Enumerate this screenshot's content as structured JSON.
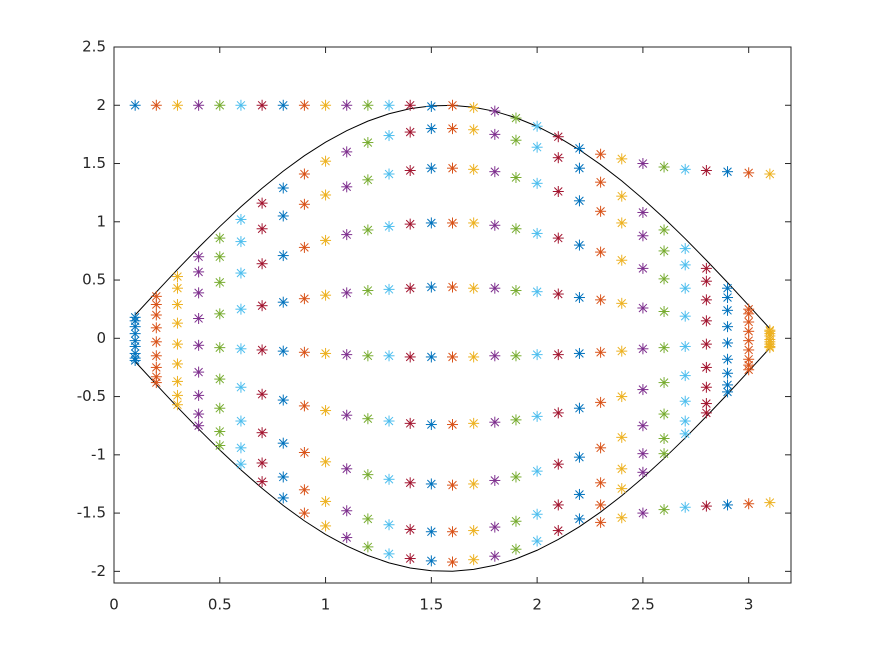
{
  "chart_data": {
    "type": "scatter",
    "marker": "asterisk",
    "box": true,
    "xlim": [
      0,
      3.2
    ],
    "ylim": [
      -2.1,
      2.5
    ],
    "xticks": [
      0,
      0.5,
      1,
      1.5,
      2,
      2.5,
      3
    ],
    "yticks": [
      -2,
      -1.5,
      -1,
      -0.5,
      0,
      0.5,
      1,
      1.5,
      2,
      2.5
    ],
    "series": [
      {
        "x": 0.1,
        "color": "#0072BD",
        "values": [
          2,
          0.18,
          0.15,
          0.1,
          0.04,
          -0.02,
          -0.07,
          -0.13,
          -0.17,
          -0.19
        ]
      },
      {
        "x": 0.2,
        "color": "#D95319",
        "values": [
          2,
          0.36,
          0.29,
          0.2,
          0.09,
          -0.03,
          -0.15,
          -0.25,
          -0.33,
          -0.38
        ]
      },
      {
        "x": 0.3,
        "color": "#EDB120",
        "values": [
          2,
          0.53,
          0.43,
          0.29,
          0.13,
          -0.05,
          -0.22,
          -0.37,
          -0.49,
          -0.57
        ]
      },
      {
        "x": 0.4,
        "color": "#7E2F8E",
        "values": [
          2,
          0.7,
          0.57,
          0.39,
          0.17,
          -0.06,
          -0.29,
          -0.49,
          -0.65,
          -0.75
        ]
      },
      {
        "x": 0.5,
        "color": "#77AC30",
        "values": [
          2,
          0.86,
          0.7,
          0.48,
          0.21,
          -0.08,
          -0.35,
          -0.6,
          -0.8,
          -0.92
        ]
      },
      {
        "x": 0.6,
        "color": "#4DBEEE",
        "values": [
          2,
          1.02,
          0.83,
          0.56,
          0.25,
          -0.09,
          -0.42,
          -0.71,
          -0.94,
          -1.08
        ]
      },
      {
        "x": 0.7,
        "color": "#A2142F",
        "values": [
          2,
          1.16,
          0.94,
          0.64,
          0.28,
          -0.1,
          -0.48,
          -0.81,
          -1.07,
          -1.23
        ]
      },
      {
        "x": 0.8,
        "color": "#0072BD",
        "values": [
          2,
          1.29,
          1.05,
          0.71,
          0.31,
          -0.11,
          -0.53,
          -0.9,
          -1.19,
          -1.37
        ]
      },
      {
        "x": 0.9,
        "color": "#D95319",
        "values": [
          2,
          1.41,
          1.15,
          0.78,
          0.34,
          -0.12,
          -0.58,
          -0.98,
          -1.3,
          -1.5
        ]
      },
      {
        "x": 1.0,
        "color": "#EDB120",
        "values": [
          2,
          1.52,
          1.23,
          0.84,
          0.37,
          -0.13,
          -0.62,
          -1.06,
          -1.4,
          -1.61
        ]
      },
      {
        "x": 1.1,
        "color": "#7E2F8E",
        "values": [
          2,
          1.6,
          1.3,
          0.89,
          0.39,
          -0.14,
          -0.66,
          -1.12,
          -1.48,
          -1.71
        ]
      },
      {
        "x": 1.2,
        "color": "#77AC30",
        "values": [
          2,
          1.68,
          1.36,
          0.93,
          0.41,
          -0.15,
          -0.69,
          -1.17,
          -1.55,
          -1.79
        ]
      },
      {
        "x": 1.3,
        "color": "#4DBEEE",
        "values": [
          2,
          1.74,
          1.41,
          0.96,
          0.42,
          -0.15,
          -0.71,
          -1.21,
          -1.6,
          -1.85
        ]
      },
      {
        "x": 1.4,
        "color": "#A2142F",
        "values": [
          2,
          1.77,
          1.44,
          0.98,
          0.43,
          -0.16,
          -0.73,
          -1.24,
          -1.64,
          -1.89
        ]
      },
      {
        "x": 1.5,
        "color": "#0072BD",
        "values": [
          1.99,
          1.8,
          1.46,
          0.99,
          0.44,
          -0.16,
          -0.74,
          -1.25,
          -1.66,
          -1.91
        ]
      },
      {
        "x": 1.6,
        "color": "#D95319",
        "values": [
          2.0,
          1.8,
          1.46,
          0.99,
          0.44,
          -0.16,
          -0.74,
          -1.26,
          -1.66,
          -1.92
        ]
      },
      {
        "x": 1.7,
        "color": "#EDB120",
        "values": [
          1.98,
          1.79,
          1.45,
          0.99,
          0.43,
          -0.16,
          -0.73,
          -1.25,
          -1.65,
          -1.9
        ]
      },
      {
        "x": 1.8,
        "color": "#7E2F8E",
        "values": [
          1.95,
          1.75,
          1.43,
          0.97,
          0.43,
          -0.15,
          -0.72,
          -1.22,
          -1.62,
          -1.87
        ]
      },
      {
        "x": 1.9,
        "color": "#77AC30",
        "values": [
          1.89,
          1.7,
          1.38,
          0.94,
          0.41,
          -0.15,
          -0.7,
          -1.19,
          -1.57,
          -1.81
        ]
      },
      {
        "x": 2.0,
        "color": "#4DBEEE",
        "values": [
          1.82,
          1.64,
          1.33,
          0.9,
          0.4,
          -0.14,
          -0.67,
          -1.14,
          -1.51,
          -1.74
        ]
      },
      {
        "x": 2.1,
        "color": "#A2142F",
        "values": [
          1.73,
          1.55,
          1.26,
          0.86,
          0.38,
          -0.14,
          -0.64,
          -1.08,
          -1.43,
          -1.65
        ]
      },
      {
        "x": 2.2,
        "color": "#0072BD",
        "values": [
          1.63,
          1.46,
          1.18,
          0.8,
          0.35,
          -0.13,
          -0.6,
          -1.02,
          -1.34,
          -1.55
        ]
      },
      {
        "x": 2.3,
        "color": "#D95319",
        "values": [
          1.58,
          1.34,
          1.09,
          0.74,
          0.33,
          -0.12,
          -0.55,
          -0.94,
          -1.24,
          -1.43,
          -1.58
        ]
      },
      {
        "x": 2.4,
        "color": "#EDB120",
        "values": [
          1.54,
          1.22,
          0.99,
          0.67,
          0.3,
          -0.11,
          -0.5,
          -0.85,
          -1.12,
          -1.29,
          -1.54
        ]
      },
      {
        "x": 2.5,
        "color": "#7E2F8E",
        "values": [
          1.5,
          1.08,
          0.88,
          0.6,
          0.26,
          -0.09,
          -0.44,
          -0.75,
          -0.99,
          -1.15,
          -1.5
        ]
      },
      {
        "x": 2.6,
        "color": "#77AC30",
        "values": [
          1.47,
          0.93,
          0.75,
          0.51,
          0.23,
          -0.08,
          -0.38,
          -0.65,
          -0.86,
          -0.99,
          -1.47
        ]
      },
      {
        "x": 2.7,
        "color": "#4DBEEE",
        "values": [
          1.45,
          0.77,
          0.63,
          0.43,
          0.19,
          -0.07,
          -0.32,
          -0.54,
          -0.71,
          -0.82,
          -1.45
        ]
      },
      {
        "x": 2.8,
        "color": "#A2142F",
        "values": [
          1.44,
          0.6,
          0.49,
          0.33,
          0.15,
          -0.05,
          -0.25,
          -0.42,
          -0.56,
          -0.64,
          -1.44
        ]
      },
      {
        "x": 2.9,
        "color": "#0072BD",
        "values": [
          1.43,
          0.43,
          0.35,
          0.24,
          0.1,
          -0.04,
          -0.18,
          -0.3,
          -0.4,
          -0.46,
          -1.43
        ]
      },
      {
        "x": 3.0,
        "color": "#D95319",
        "values": [
          1.42,
          0.25,
          0.21,
          0.14,
          0.06,
          -0.02,
          -0.1,
          -0.18,
          -0.23,
          -0.27,
          -1.42
        ]
      },
      {
        "x": 3.1,
        "color": "#EDB120",
        "values": [
          1.41,
          0.07,
          0.06,
          0.04,
          0.02,
          -0.01,
          -0.03,
          -0.05,
          -0.07,
          -0.08,
          -1.41
        ]
      }
    ],
    "lines": [
      {
        "color": "#000000",
        "x": [
          0.1,
          0.2,
          0.3,
          0.4,
          0.5,
          0.6,
          0.7,
          0.8,
          0.9,
          1.0,
          1.1,
          1.2,
          1.3,
          1.4,
          1.5,
          1.6,
          1.7,
          1.8,
          1.9,
          2.0,
          2.1,
          2.2,
          2.3,
          2.4,
          2.5,
          2.6,
          2.7,
          2.8,
          2.9,
          3.0,
          3.1
        ],
        "values": [
          0.2,
          0.397,
          0.591,
          0.779,
          0.959,
          1.129,
          1.288,
          1.435,
          1.567,
          1.683,
          1.782,
          1.864,
          1.927,
          1.971,
          1.995,
          1.999,
          1.983,
          1.948,
          1.893,
          1.819,
          1.726,
          1.617,
          1.491,
          1.351,
          1.197,
          1.031,
          0.855,
          0.67,
          0.479,
          0.282,
          0.083
        ]
      },
      {
        "color": "#000000",
        "x": [
          0.1,
          0.2,
          0.3,
          0.4,
          0.5,
          0.6,
          0.7,
          0.8,
          0.9,
          1.0,
          1.1,
          1.2,
          1.3,
          1.4,
          1.5,
          1.6,
          1.7,
          1.8,
          1.9,
          2.0,
          2.1,
          2.2,
          2.3,
          2.4,
          2.5,
          2.6,
          2.7,
          2.8,
          2.9,
          3.0,
          3.1
        ],
        "values": [
          -0.2,
          -0.397,
          -0.591,
          -0.779,
          -0.959,
          -1.129,
          -1.288,
          -1.435,
          -1.567,
          -1.683,
          -1.782,
          -1.864,
          -1.927,
          -1.971,
          -1.995,
          -1.999,
          -1.983,
          -1.948,
          -1.893,
          -1.819,
          -1.726,
          -1.617,
          -1.491,
          -1.351,
          -1.197,
          -1.031,
          -0.855,
          -0.67,
          -0.479,
          -0.282,
          -0.083
        ]
      }
    ]
  }
}
